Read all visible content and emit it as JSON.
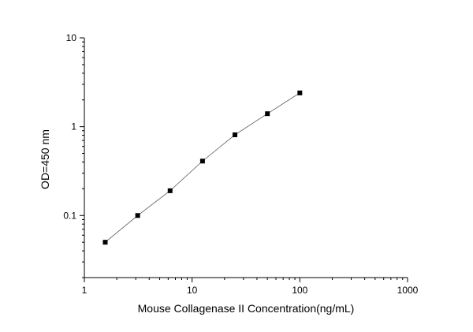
{
  "chart_data": {
    "type": "scatter",
    "xlabel": "Mouse Collagenase II  Concentration(ng/mL)",
    "ylabel": "OD=450 nm",
    "x_scale": "log",
    "y_scale": "log",
    "xlim": [
      1,
      1000
    ],
    "ylim": [
      0.02,
      10
    ],
    "x_ticks": [
      1,
      10,
      100,
      1000
    ],
    "x_tick_labels": [
      "1",
      "10",
      "100",
      "1000"
    ],
    "y_ticks": [
      0.1,
      1,
      10
    ],
    "y_tick_labels": [
      "0.1",
      "1",
      "10"
    ],
    "grid": false,
    "series": [
      {
        "x": [
          1.5625,
          3.125,
          6.25,
          12.5,
          25,
          50,
          100
        ],
        "y": [
          0.05,
          0.1,
          0.19,
          0.41,
          0.81,
          1.4,
          2.4
        ],
        "marker": "square",
        "line": true
      }
    ],
    "colors": {
      "marker": "#000000",
      "line": "#555555",
      "axis": "#000000"
    }
  }
}
